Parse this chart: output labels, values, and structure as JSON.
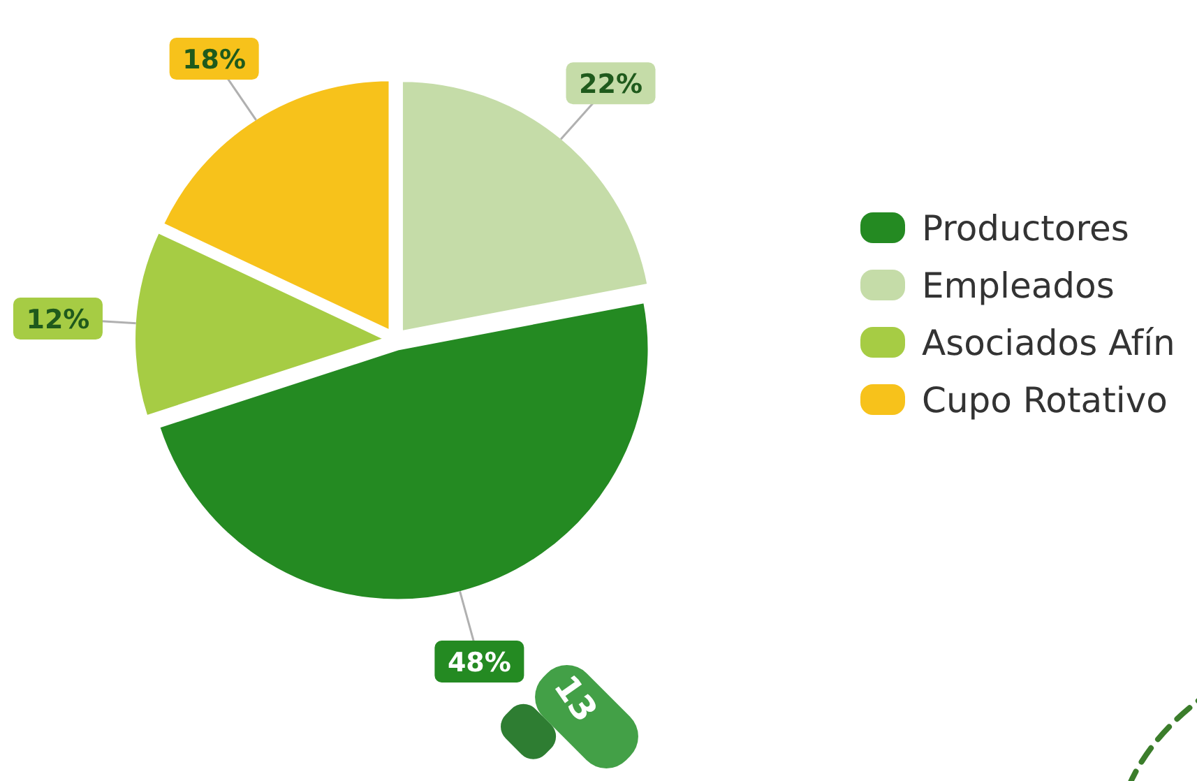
{
  "chart_data": {
    "type": "pie",
    "categories": [
      "Productores",
      "Empleados",
      "Asociados Afín",
      "Cupo Rotativo"
    ],
    "values": [
      48,
      22,
      12,
      18
    ],
    "colors": [
      "#248a22",
      "#c5dca8",
      "#a6cc44",
      "#f7c21b"
    ],
    "value_labels": [
      "48%",
      "22%",
      "12%",
      "18%"
    ],
    "legend": "right",
    "annotations": [
      "13"
    ]
  }
}
